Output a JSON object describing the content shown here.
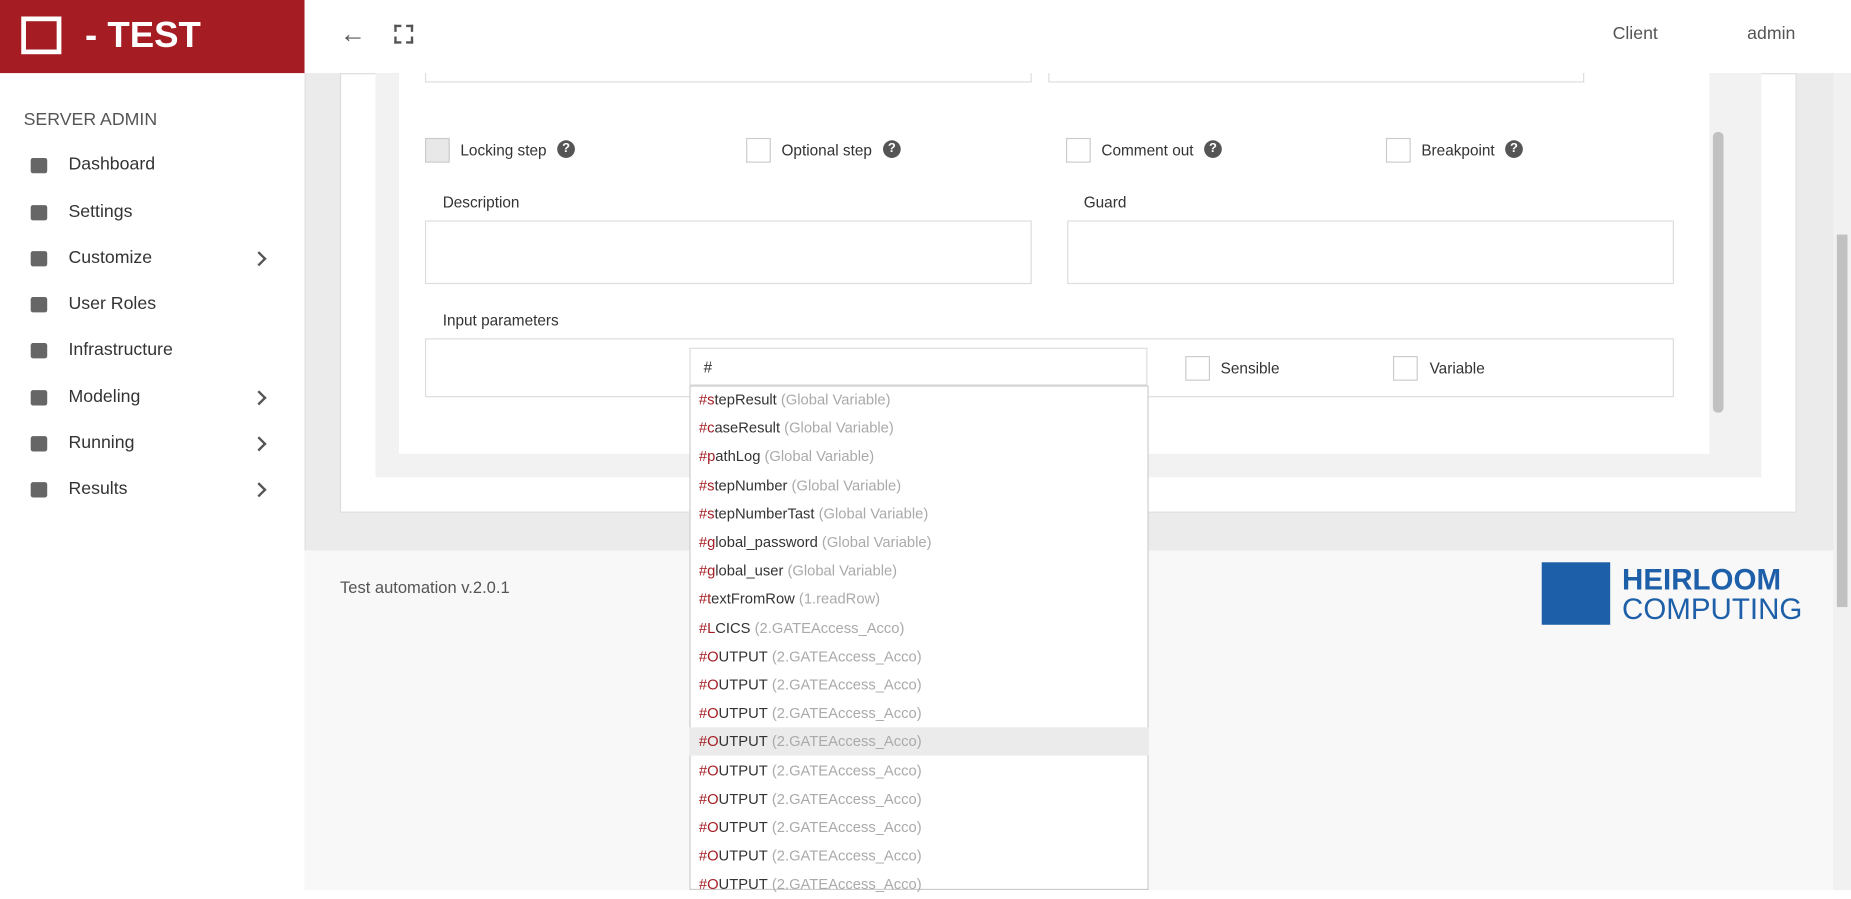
{
  "header": {
    "brand": "- TEST",
    "client": "Client",
    "user": "admin"
  },
  "sidebar": {
    "title": "SERVER ADMIN",
    "items": [
      "Dashboard",
      "Settings",
      "Customize",
      "User Roles",
      "Infrastructure",
      "Modeling",
      "Running",
      "Results"
    ]
  },
  "form": {
    "checkboxes": [
      "Locking step",
      "Optional step",
      "Comment out",
      "Breakpoint"
    ],
    "description_label": "Description",
    "guard_label": "Guard",
    "input_label": "Input parameters",
    "input_value": "#",
    "sensible": "Sensible",
    "variable": "Variable"
  },
  "dropdown": {
    "items": [
      {
        "name": "#stepResult",
        "source": "(Global Variable)"
      },
      {
        "name": "#caseResult",
        "source": "(Global Variable)"
      },
      {
        "name": "#pathLog",
        "source": "(Global Variable)"
      },
      {
        "name": "#stepNumber",
        "source": "(Global Variable)"
      },
      {
        "name": "#stepNumberTast",
        "source": "(Global Variable)"
      },
      {
        "name": "#global_password",
        "source": "(Global Variable)"
      },
      {
        "name": "#global_user",
        "source": "(Global Variable)"
      },
      {
        "name": "#textFromRow",
        "source": "(1.readRow)"
      },
      {
        "name": "#LCICS",
        "source": "(2.GATEAccess_Acco)"
      },
      {
        "name": "#OUTPUT",
        "source": "(2.GATEAccess_Acco)"
      },
      {
        "name": "#OUTPUT",
        "source": "(2.GATEAccess_Acco)"
      },
      {
        "name": "#OUTPUT",
        "source": "(2.GATEAccess_Acco)"
      },
      {
        "name": "#OUTPUT",
        "source": "(2.GATEAccess_Acco)"
      },
      {
        "name": "#OUTPUT",
        "source": "(2.GATEAccess_Acco)"
      },
      {
        "name": "#OUTPUT",
        "source": "(2.GATEAccess_Acco)"
      },
      {
        "name": "#OUTPUT",
        "source": "(2.GATEAccess_Acco)"
      },
      {
        "name": "#OUTPUT",
        "source": "(2.GATEAccess_Acco)"
      },
      {
        "name": "#OUTPUT",
        "source": "(2.GATEAccess_Acco)"
      }
    ]
  },
  "footer": {
    "version": "Test automation v.2.0.1",
    "logo_top": "HEIRLOOM",
    "logo_bottom": "COMPUTING"
  }
}
